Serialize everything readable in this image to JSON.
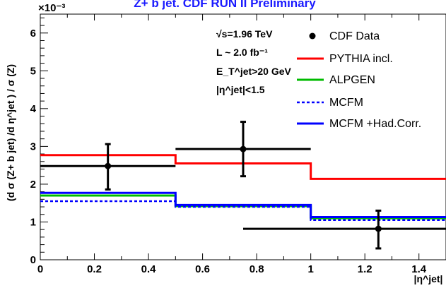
{
  "chart_data": {
    "type": "step",
    "title": "Z+ b jet. CDF RUN II Preliminary",
    "exponent_label": "×10⁻³",
    "xlabel": "|η^jet|",
    "ylabel": "(d σ (Z+ b jet) /d η^jet ) / σ (Z)",
    "xlim": [
      0,
      1.5
    ],
    "ylim": [
      0,
      6.5
    ],
    "x_ticks": [
      "0",
      "0.2",
      "0.4",
      "0.6",
      "0.8",
      "1",
      "1.2",
      "1.4"
    ],
    "y_ticks": [
      "0",
      "1",
      "2",
      "3",
      "4",
      "5",
      "6"
    ],
    "bin_edges": [
      0,
      0.5,
      1.0,
      1.5
    ],
    "info": {
      "line1": "√s=1.96 TeV",
      "line2": "L ~ 2.0 fb⁻¹",
      "line3": "E_T^jet>20 GeV",
      "line4": "|η^jet|<1.5"
    },
    "legend_position": "top-right",
    "series": [
      {
        "name": "CDF Data",
        "style": "points",
        "color": "#000000",
        "x": [
          0.25,
          0.75,
          1.25
        ],
        "values": [
          2.48,
          2.93,
          0.82
        ],
        "err_low": [
          0.62,
          0.72,
          0.52
        ],
        "err_high": [
          0.58,
          0.72,
          0.48
        ]
      },
      {
        "name": "PYTHIA incl.",
        "style": "step",
        "color": "#ff0000",
        "values": [
          2.77,
          2.55,
          2.14
        ]
      },
      {
        "name": "ALPGEN",
        "style": "step",
        "color": "#00bb00",
        "values": [
          1.7,
          1.42,
          1.1
        ]
      },
      {
        "name": "MCFM",
        "style": "dashed",
        "color": "#0000ff",
        "values": [
          1.55,
          1.4,
          1.05
        ]
      },
      {
        "name": "MCFM +Had.Corr.",
        "style": "step",
        "color": "#0000ff",
        "values": [
          1.77,
          1.45,
          1.13
        ]
      }
    ]
  }
}
